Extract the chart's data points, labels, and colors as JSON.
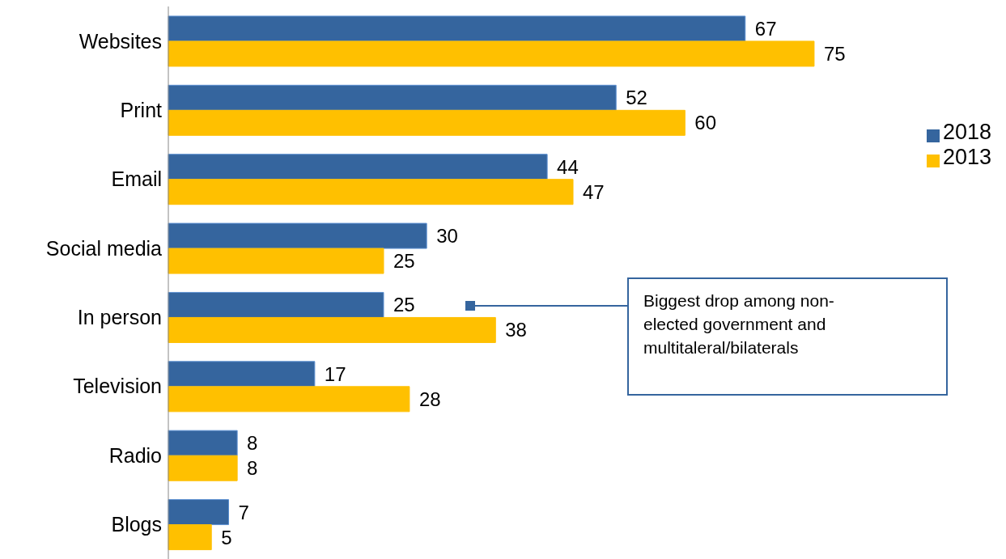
{
  "chart_data": {
    "type": "bar",
    "orientation": "horizontal",
    "categories": [
      "Websites",
      "Print",
      "Email",
      "Social media",
      "In person",
      "Television",
      "Radio",
      "Blogs"
    ],
    "series": [
      {
        "name": "2018",
        "color": "#35659e",
        "values": [
          67,
          52,
          44,
          30,
          25,
          17,
          8,
          7
        ]
      },
      {
        "name": "2013",
        "color": "#ffc000",
        "values": [
          75,
          60,
          47,
          25,
          38,
          28,
          8,
          5
        ]
      }
    ],
    "data_labels": true,
    "legend": "right",
    "grid": false,
    "annotations": [
      "Biggest drop among non-elected government and multitaleral/bilaterals"
    ]
  }
}
